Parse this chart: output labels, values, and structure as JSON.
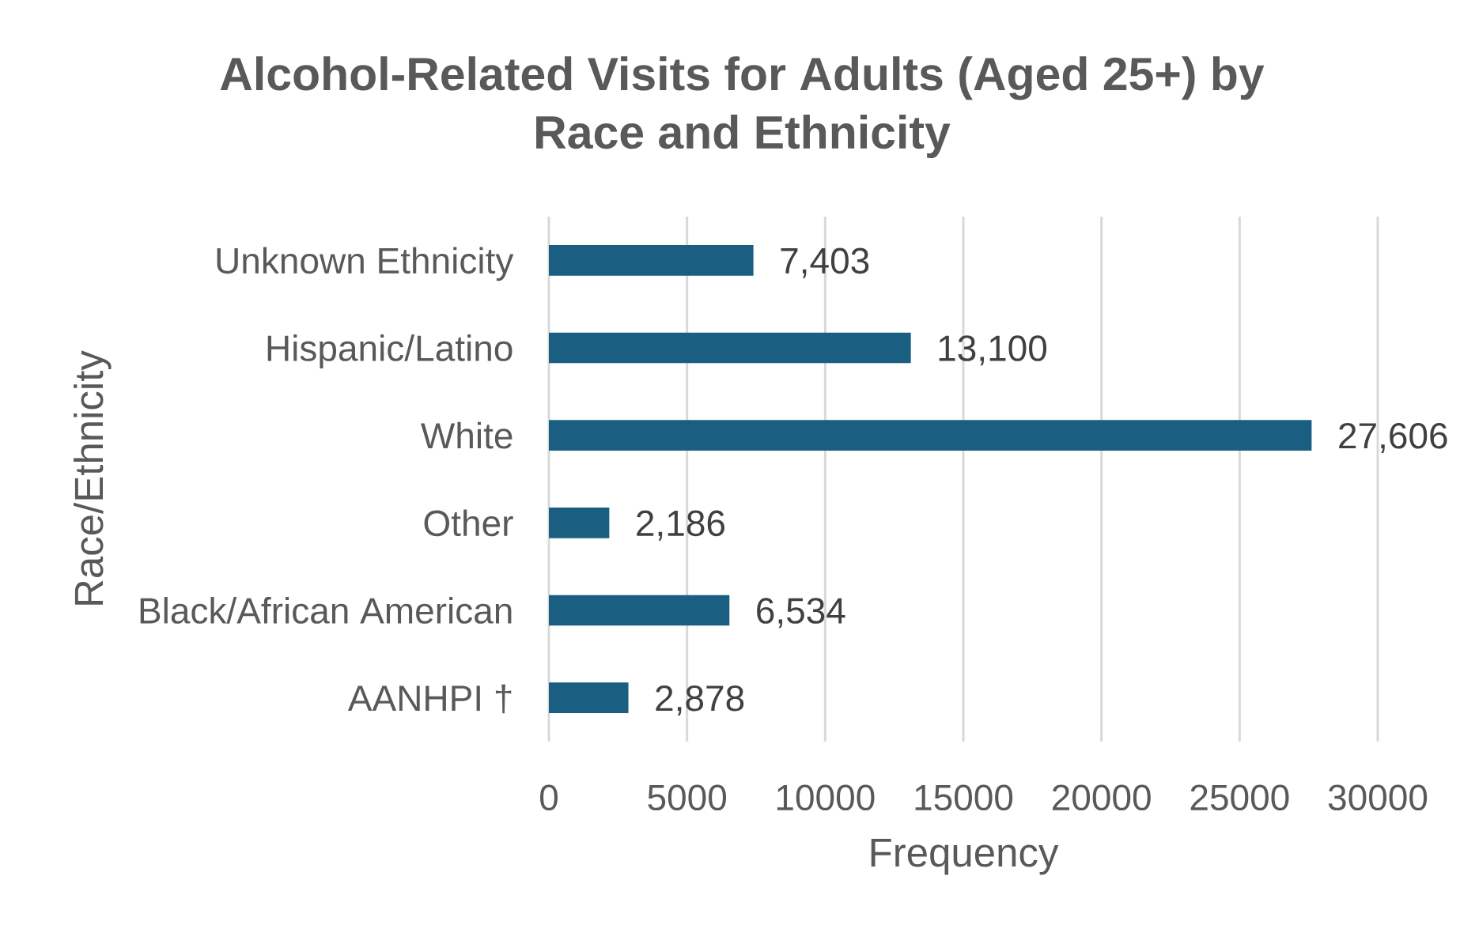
{
  "chart_data": {
    "type": "bar",
    "orientation": "horizontal",
    "title": "Alcohol-Related Visits for Adults (Aged 25+) by Race and Ethnicity",
    "xlabel": "Frequency",
    "ylabel": "Race/Ethnicity",
    "categories": [
      "Unknown Ethnicity",
      "Hispanic/Latino",
      "White",
      "Other",
      "Black/African American",
      "AANHPI †"
    ],
    "values": [
      7403,
      13100,
      27606,
      2186,
      6534,
      2878
    ],
    "value_labels": [
      "7,403",
      "13,100",
      "27,606",
      "2,186",
      "6,534",
      "2,878"
    ],
    "color": "#1a5e82",
    "xlim": [
      0,
      30000
    ],
    "xticks": [
      0,
      5000,
      10000,
      15000,
      20000,
      25000,
      30000
    ],
    "grid": "x"
  }
}
